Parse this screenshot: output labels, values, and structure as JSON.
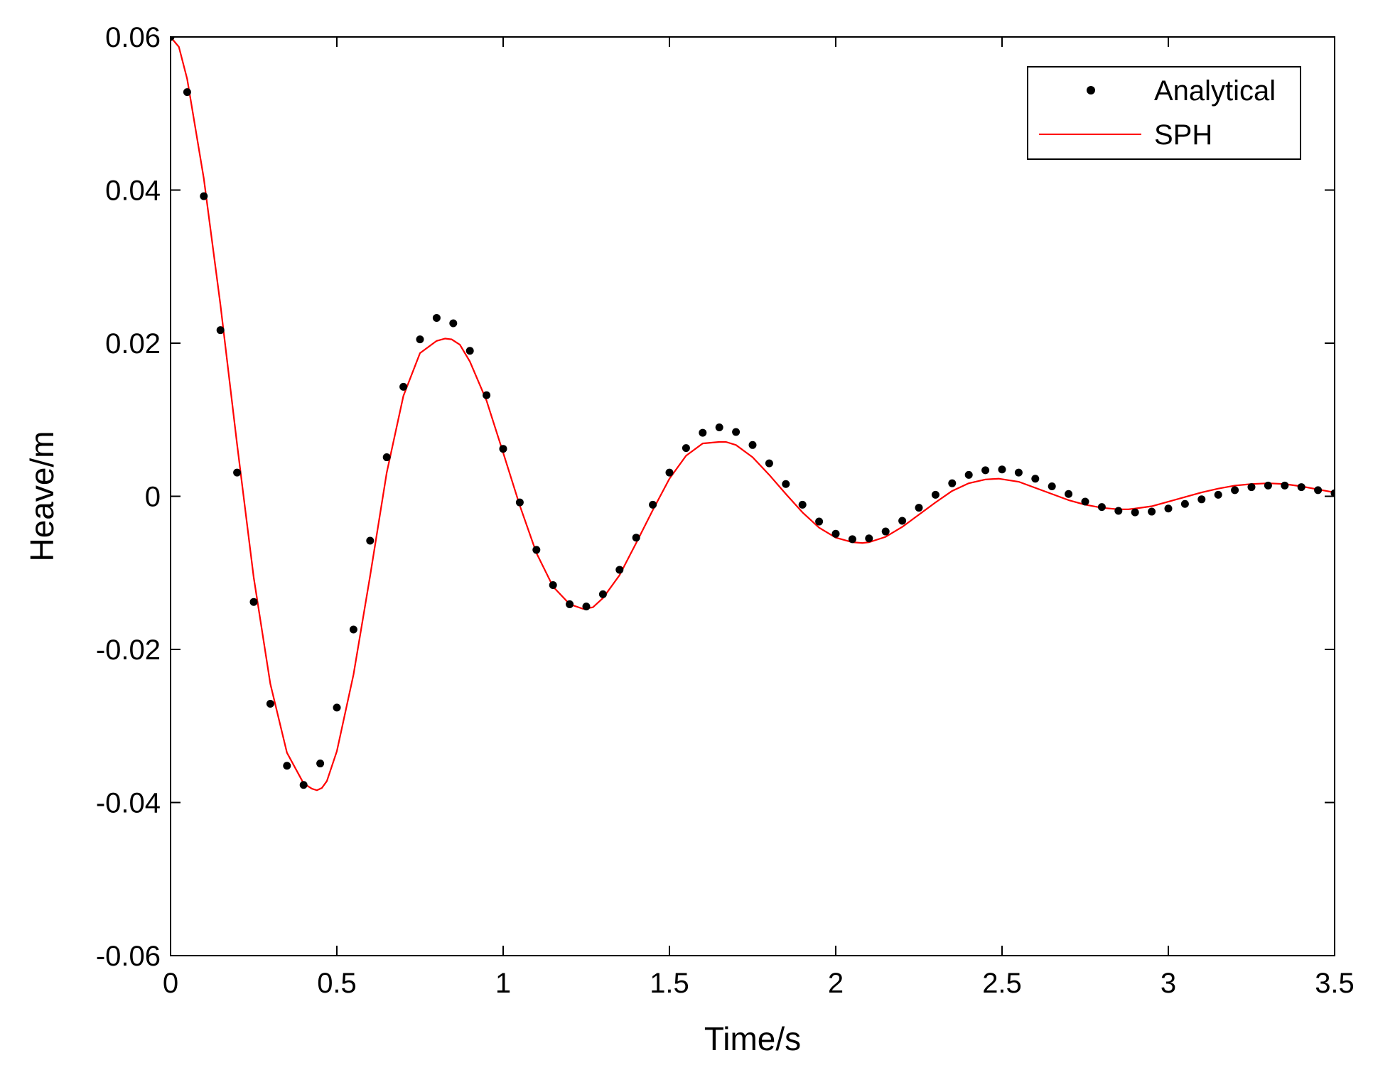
{
  "chart_data": {
    "type": "line",
    "title": "",
    "xlabel": "Time/s",
    "ylabel": "Heave/m",
    "xlim": [
      0,
      3.5
    ],
    "ylim": [
      -0.06,
      0.06
    ],
    "xticks": [
      0,
      0.5,
      1,
      1.5,
      2,
      2.5,
      3,
      3.5
    ],
    "xtick_labels": [
      "0",
      "0.5",
      "1",
      "1.5",
      "2",
      "2.5",
      "3",
      "3.5"
    ],
    "yticks": [
      -0.06,
      -0.04,
      -0.02,
      0,
      0.02,
      0.04,
      0.06
    ],
    "ytick_labels": [
      "-0.06",
      "-0.04",
      "-0.02",
      "0",
      "0.02",
      "0.04",
      "0.06"
    ],
    "grid": false,
    "box": true,
    "legend_position": "top-right",
    "series": [
      {
        "name": "Analytical",
        "type": "scatter",
        "color": "#000000",
        "marker": "dot",
        "x": [
          0,
          0.05,
          0.1,
          0.15,
          0.2,
          0.25,
          0.3,
          0.35,
          0.4,
          0.45,
          0.5,
          0.55,
          0.6,
          0.65,
          0.7,
          0.75,
          0.8,
          0.85,
          0.9,
          0.95,
          1.0,
          1.05,
          1.1,
          1.15,
          1.2,
          1.25,
          1.3,
          1.35,
          1.4,
          1.45,
          1.5,
          1.55,
          1.6,
          1.65,
          1.7,
          1.75,
          1.8,
          1.85,
          1.9,
          1.95,
          2.0,
          2.05,
          2.1,
          2.15,
          2.2,
          2.25,
          2.3,
          2.35,
          2.4,
          2.45,
          2.5,
          2.55,
          2.6,
          2.65,
          2.7,
          2.75,
          2.8,
          2.85,
          2.9,
          2.95,
          3.0,
          3.05,
          3.1,
          3.15,
          3.2,
          3.25,
          3.3,
          3.35,
          3.4,
          3.45,
          3.5
        ],
        "y": [
          0.06,
          0.0528,
          0.0392,
          0.0217,
          0.0031,
          -0.0138,
          -0.0271,
          -0.0352,
          -0.0377,
          -0.0349,
          -0.0276,
          -0.0174,
          -0.0058,
          0.0051,
          0.0143,
          0.0205,
          0.0233,
          0.0226,
          0.019,
          0.0132,
          0.0062,
          -0.0008,
          -0.007,
          -0.0116,
          -0.0141,
          -0.0144,
          -0.0128,
          -0.0096,
          -0.0054,
          -0.0011,
          0.0031,
          0.0063,
          0.0083,
          0.009,
          0.0084,
          0.0067,
          0.0043,
          0.0016,
          -0.0011,
          -0.0033,
          -0.0049,
          -0.0056,
          -0.0055,
          -0.0046,
          -0.0032,
          -0.0015,
          0.0002,
          0.0017,
          0.0028,
          0.0034,
          0.0035,
          0.0031,
          0.0023,
          0.0013,
          0.0003,
          -0.0007,
          -0.0014,
          -0.0019,
          -0.0021,
          -0.002,
          -0.0016,
          -0.001,
          -0.0004,
          0.0002,
          0.0008,
          0.0012,
          0.0014,
          0.0014,
          0.0012,
          0.0008,
          0.0004
        ]
      },
      {
        "name": "SPH",
        "type": "line",
        "color": "#ff0000",
        "x": [
          0,
          0.025,
          0.05,
          0.1,
          0.15,
          0.2,
          0.25,
          0.3,
          0.35,
          0.4,
          0.425,
          0.44,
          0.455,
          0.47,
          0.5,
          0.55,
          0.6,
          0.65,
          0.7,
          0.75,
          0.8,
          0.825,
          0.845,
          0.87,
          0.9,
          0.95,
          1.0,
          1.05,
          1.1,
          1.15,
          1.2,
          1.24,
          1.27,
          1.3,
          1.35,
          1.4,
          1.45,
          1.5,
          1.55,
          1.6,
          1.65,
          1.67,
          1.7,
          1.75,
          1.8,
          1.85,
          1.9,
          1.95,
          2.0,
          2.05,
          2.08,
          2.1,
          2.15,
          2.2,
          2.25,
          2.3,
          2.35,
          2.4,
          2.45,
          2.49,
          2.55,
          2.6,
          2.65,
          2.7,
          2.75,
          2.8,
          2.85,
          2.88,
          2.9,
          2.95,
          3.0,
          3.05,
          3.1,
          3.15,
          3.2,
          3.25,
          3.3,
          3.35,
          3.4,
          3.45,
          3.5
        ],
        "y": [
          0.06,
          0.0587,
          0.0545,
          0.0415,
          0.025,
          0.0068,
          -0.0106,
          -0.0245,
          -0.0335,
          -0.0375,
          -0.0382,
          -0.0384,
          -0.0381,
          -0.0372,
          -0.0333,
          -0.0233,
          -0.0104,
          0.0031,
          0.0131,
          0.0187,
          0.0203,
          0.0206,
          0.0205,
          0.0198,
          0.0176,
          0.0125,
          0.0057,
          -0.0012,
          -0.0074,
          -0.0118,
          -0.0141,
          -0.0147,
          -0.0145,
          -0.0133,
          -0.0103,
          -0.0061,
          -0.0018,
          0.0023,
          0.0053,
          0.0069,
          0.0071,
          0.0071,
          0.0067,
          0.0051,
          0.0028,
          0.0003,
          -0.0021,
          -0.0041,
          -0.0054,
          -0.006,
          -0.0061,
          -0.006,
          -0.0053,
          -0.004,
          -0.0024,
          -0.0008,
          0.0007,
          0.0017,
          0.0022,
          0.0023,
          0.0019,
          0.0011,
          0.0003,
          -0.0005,
          -0.0011,
          -0.0015,
          -0.0017,
          -0.0017,
          -0.0016,
          -0.0013,
          -0.0007,
          -0.0001,
          0.0005,
          0.001,
          0.0014,
          0.0016,
          0.0017,
          0.0016,
          0.0013,
          0.0009,
          0.0005
        ]
      }
    ]
  }
}
